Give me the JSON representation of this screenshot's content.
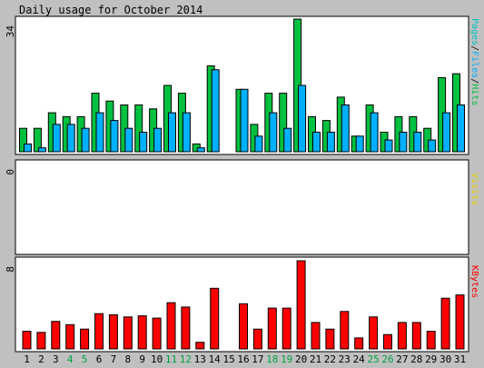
{
  "chart_data": {
    "type": "bar",
    "title": "Daily usage for October 2014",
    "x": [
      "1",
      "2",
      "3",
      "4",
      "5",
      "6",
      "7",
      "8",
      "9",
      "10",
      "11",
      "12",
      "13",
      "14",
      "15",
      "16",
      "17",
      "18",
      "19",
      "20",
      "21",
      "22",
      "23",
      "24",
      "25",
      "26",
      "27",
      "28",
      "29",
      "30",
      "31"
    ],
    "weekend_days": [
      "4",
      "5",
      "11",
      "12",
      "18",
      "19",
      "25",
      "26"
    ],
    "panels": [
      {
        "ylabel": "Pages/Files/Hits",
        "ymax_label": "34",
        "ylim": [
          0,
          34
        ],
        "series": [
          {
            "name": "Hits",
            "color": "#00c040",
            "values": [
              6,
              6,
              10,
              9,
              9,
              15,
              13,
              12,
              12,
              11,
              17,
              15,
              2,
              22,
              0,
              16,
              7,
              15,
              15,
              34,
              9,
              8,
              14,
              4,
              12,
              5,
              9,
              9,
              6,
              19,
              20
            ]
          },
          {
            "name": "Files",
            "color": "#00b0ff",
            "values": [
              2,
              1,
              7,
              7,
              6,
              10,
              8,
              6,
              5,
              6,
              10,
              10,
              1,
              21,
              0,
              16,
              4,
              10,
              6,
              17,
              5,
              5,
              12,
              4,
              10,
              3,
              5,
              5,
              3,
              10,
              12
            ]
          }
        ]
      },
      {
        "ylabel": "Visits",
        "ymax_label": "0",
        "ylim": [
          0,
          1
        ],
        "series": []
      },
      {
        "ylabel": "KBytes",
        "ymax_label": "8",
        "ylim": [
          0,
          8
        ],
        "series": [
          {
            "name": "KBytes",
            "color": "#ff0000",
            "values": [
              1.6,
              1.5,
              2.5,
              2.2,
              1.8,
              3.2,
              3.1,
              2.9,
              3.0,
              2.8,
              4.2,
              3.8,
              0.6,
              5.5,
              0,
              4.1,
              1.8,
              3.7,
              3.7,
              8.0,
              2.4,
              1.8,
              3.4,
              1.0,
              2.9,
              1.3,
              2.4,
              2.4,
              1.6,
              4.6,
              4.9
            ]
          }
        ]
      }
    ]
  }
}
